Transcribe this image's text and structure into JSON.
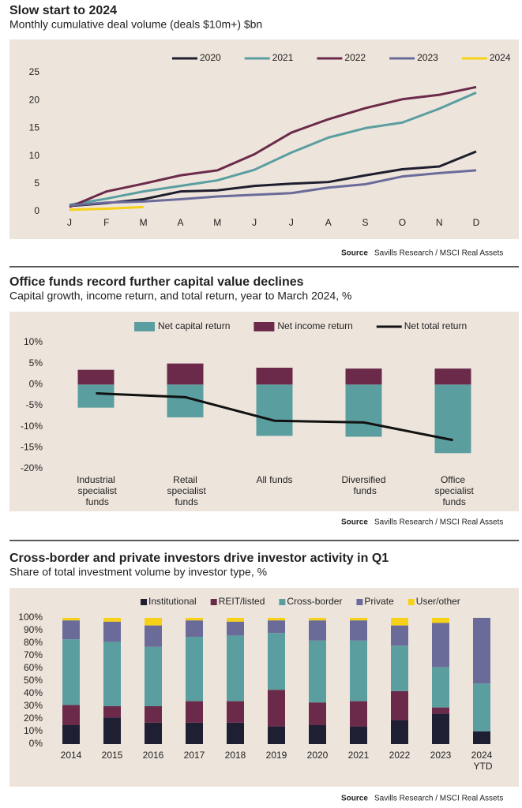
{
  "chart_data": [
    {
      "type": "line",
      "title": "Slow start to 2024",
      "subtitle": "Monthly cumulative deal volume (deals $10m+) $bn",
      "source_label": "Source",
      "source": "Savills Research / MSCI Real Assets",
      "categories": [
        "J",
        "F",
        "M",
        "A",
        "M",
        "J",
        "J",
        "A",
        "S",
        "O",
        "N",
        "D"
      ],
      "ylim": [
        0,
        25
      ],
      "yticks": [
        0,
        5,
        10,
        15,
        20,
        25
      ],
      "grid": false,
      "legend": "top",
      "series": [
        {
          "name": "2020",
          "color": "#1e1e2e",
          "values": [
            1,
            1.5,
            2.2,
            3.6,
            3.8,
            4.6,
            5.0,
            5.3,
            6.5,
            7.6,
            8.1,
            10.8
          ]
        },
        {
          "name": "2021",
          "color": "#5b9ea0",
          "values": [
            1.2,
            2.3,
            3.6,
            4.6,
            5.6,
            7.5,
            10.6,
            13.3,
            15.0,
            16.0,
            18.5,
            21.4
          ]
        },
        {
          "name": "2022",
          "color": "#6b2a4a",
          "values": [
            0.8,
            3.6,
            5.0,
            6.5,
            7.4,
            10.3,
            14.2,
            16.6,
            18.6,
            20.2,
            21.0,
            22.4
          ]
        },
        {
          "name": "2023",
          "color": "#6b6b9a",
          "values": [
            1.1,
            1.6,
            1.8,
            2.2,
            2.7,
            3.0,
            3.3,
            4.3,
            4.9,
            6.3,
            6.9,
            7.4
          ]
        },
        {
          "name": "2024",
          "color": "#f7d117",
          "values": [
            0.3,
            0.5,
            0.8,
            null,
            null,
            null,
            null,
            null,
            null,
            null,
            null,
            null
          ]
        }
      ]
    },
    {
      "type": "bar",
      "title": "Office funds record further capital value declines",
      "subtitle": "Capital growth, income return, and total return, year to March 2024, %",
      "source_label": "Source",
      "source": "Savills Research / MSCI Real Assets",
      "categories": [
        "Industrial specialist funds",
        "Retail specialist funds",
        "All funds",
        "Diversified funds",
        "Office specialist funds"
      ],
      "ylim": [
        -20,
        10
      ],
      "yticks": [
        {
          "value": 10,
          "label": "10%"
        },
        {
          "value": 5,
          "label": "5%"
        },
        {
          "value": 0,
          "label": "0%"
        },
        {
          "value": -5,
          "label": "-5%"
        },
        {
          "value": -10,
          "label": "-10%"
        },
        {
          "value": -15,
          "label": "-15%"
        },
        {
          "value": -20,
          "label": "-20%"
        }
      ],
      "grid": false,
      "legend": "top",
      "series": [
        {
          "name": "Net capital return",
          "color": "#5b9ea0",
          "values": [
            -5.5,
            -7.8,
            -12.2,
            -12.4,
            -16.3
          ]
        },
        {
          "name": "Net income return",
          "color": "#6b2a4a",
          "values": [
            3.5,
            5.0,
            4.0,
            3.8,
            3.8
          ]
        },
        {
          "name": "Net total return",
          "color": "#111111",
          "type": "line",
          "values": [
            -2.1,
            -3.0,
            -8.6,
            -9.0,
            -13.2
          ]
        }
      ]
    },
    {
      "type": "stacked_bar",
      "title": "Cross-border and private investors drive investor activity in Q1",
      "subtitle": "Share of total investment volume by investor type, %",
      "source_label": "Source",
      "source": "Savills Research / MSCI Real Assets",
      "categories": [
        "2014",
        "2015",
        "2016",
        "2017",
        "2018",
        "2019",
        "2020",
        "2021",
        "2022",
        "2023",
        "2024 YTD"
      ],
      "ylim": [
        0,
        100
      ],
      "yticks": [
        {
          "value": 0,
          "label": "0%"
        },
        {
          "value": 10,
          "label": "10%"
        },
        {
          "value": 20,
          "label": "20%"
        },
        {
          "value": 30,
          "label": "30%"
        },
        {
          "value": 40,
          "label": "40%"
        },
        {
          "value": 50,
          "label": "50%"
        },
        {
          "value": 60,
          "label": "60%"
        },
        {
          "value": 70,
          "label": "70%"
        },
        {
          "value": 80,
          "label": "80%"
        },
        {
          "value": 90,
          "label": "90%"
        },
        {
          "value": 100,
          "label": "100%"
        }
      ],
      "grid": false,
      "legend": "top",
      "series": [
        {
          "name": "Institutional",
          "color": "#1f1f33",
          "values": [
            15,
            21,
            17,
            17,
            17,
            14,
            15,
            14,
            19,
            24,
            10
          ]
        },
        {
          "name": "REIT/listed",
          "color": "#6b2a4a",
          "values": [
            16,
            9,
            13,
            17,
            17,
            29,
            18,
            20,
            23,
            5,
            0
          ]
        },
        {
          "name": "Cross-border",
          "color": "#5b9ea0",
          "values": [
            52,
            51,
            47,
            51,
            52,
            45,
            49,
            48,
            36,
            32,
            38
          ]
        },
        {
          "name": "Private",
          "color": "#6b6b9a",
          "values": [
            15,
            16,
            17,
            13,
            11,
            10,
            16,
            16,
            16,
            35,
            52
          ]
        },
        {
          "name": "User/other",
          "color": "#f7d117",
          "values": [
            2,
            3,
            6,
            2,
            3,
            2,
            2,
            2,
            6,
            4,
            0
          ]
        }
      ]
    }
  ]
}
